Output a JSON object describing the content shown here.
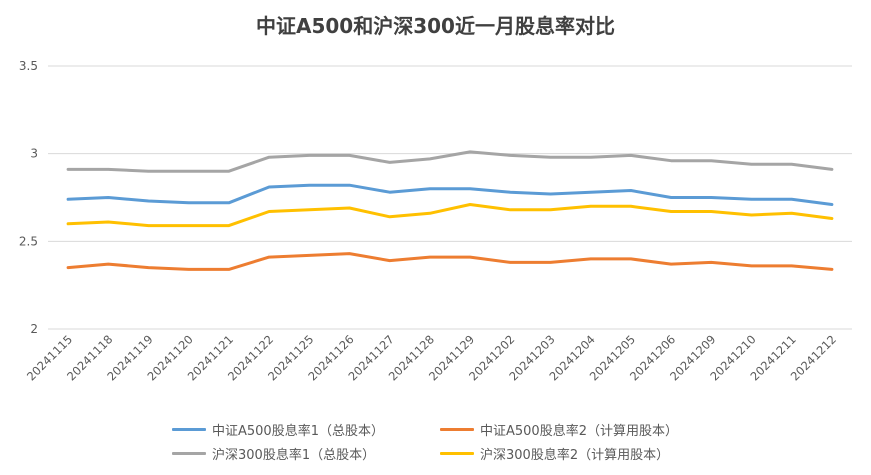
{
  "chart_data": {
    "type": "line",
    "title": "中证A500和沪深300近一月股息率对比",
    "xlabel": "",
    "ylabel": "",
    "ylim": [
      2,
      3.5
    ],
    "yticks": [
      "2",
      "2.5",
      "3",
      "3.5"
    ],
    "ytick_values": [
      2,
      2.5,
      3,
      3.5
    ],
    "grid": true,
    "legend_position": "bottom",
    "categories": [
      "20241115",
      "20241118",
      "20241119",
      "20241120",
      "20241121",
      "20241122",
      "20241125",
      "20241126",
      "20241127",
      "20241128",
      "20241129",
      "20241202",
      "20241203",
      "20241204",
      "20241205",
      "20241206",
      "20241209",
      "20241210",
      "20241211",
      "20241212"
    ],
    "series": [
      {
        "name": "中证A500股息率1（总股本）",
        "color": "#5B9BD5",
        "values": [
          2.74,
          2.75,
          2.73,
          2.72,
          2.72,
          2.81,
          2.82,
          2.82,
          2.78,
          2.8,
          2.8,
          2.78,
          2.77,
          2.78,
          2.79,
          2.75,
          2.75,
          2.74,
          2.74,
          2.71
        ]
      },
      {
        "name": "中证A500股息率2（计算用股本）",
        "color": "#ED7D31",
        "values": [
          2.35,
          2.37,
          2.35,
          2.34,
          2.34,
          2.41,
          2.42,
          2.43,
          2.39,
          2.41,
          2.41,
          2.38,
          2.38,
          2.4,
          2.4,
          2.37,
          2.38,
          2.36,
          2.36,
          2.34
        ]
      },
      {
        "name": "沪深300股息率1（总股本）",
        "color": "#A5A5A5",
        "values": [
          2.91,
          2.91,
          2.9,
          2.9,
          2.9,
          2.98,
          2.99,
          2.99,
          2.95,
          2.97,
          3.01,
          2.99,
          2.98,
          2.98,
          2.99,
          2.96,
          2.96,
          2.94,
          2.94,
          2.91
        ]
      },
      {
        "name": "沪深300股息率2（计算用股本）",
        "color": "#FFC000",
        "values": [
          2.6,
          2.61,
          2.59,
          2.59,
          2.59,
          2.67,
          2.68,
          2.69,
          2.64,
          2.66,
          2.71,
          2.68,
          2.68,
          2.7,
          2.7,
          2.67,
          2.67,
          2.65,
          2.66,
          2.63
        ]
      }
    ]
  }
}
